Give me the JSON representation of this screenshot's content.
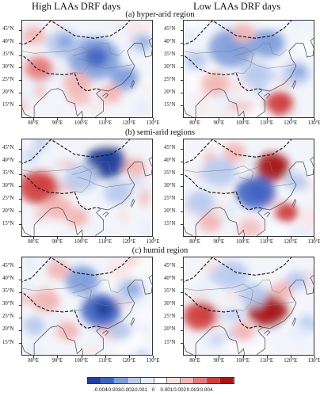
{
  "column_titles": [
    "High LAAs DRF days",
    "Low LAAs DRF days"
  ],
  "row_titles": [
    "(a) hyper-arid region",
    "(b) semi-arid regions",
    "(c) humid region"
  ],
  "lat_labels": [
    "45°N",
    "40°N",
    "35°N",
    "30°N",
    "25°N",
    "20°N",
    "15°N"
  ],
  "lon_labels": [
    "80°E",
    "90°E",
    "100°E",
    "110°E",
    "120°E",
    "130°E"
  ],
  "colorbar": {
    "ticks": [
      "-0.004",
      "-0.003",
      "-0.002",
      "-0.001",
      "0",
      "0.001",
      "0.002",
      "0.003",
      "0.004"
    ],
    "colors": [
      "#1f3f9a",
      "#3f63c4",
      "#7f9fdc",
      "#b9cbee",
      "#e4ebf8",
      "#ffffff",
      "#f9e0e0",
      "#f3b6b6",
      "#e67b7b",
      "#cf3e3e",
      "#a81414"
    ]
  },
  "panels": [
    {
      "name": "panel-a-high",
      "blobs": [
        [
          105,
          34,
          9,
          -0.7
        ],
        [
          92,
          40,
          6,
          -0.5
        ],
        [
          118,
          26,
          5,
          -0.6
        ],
        [
          82,
          30,
          5,
          0.5
        ],
        [
          112,
          20,
          4,
          0.4
        ],
        [
          125,
          40,
          4,
          -0.5
        ],
        [
          98,
          24,
          5,
          0.3
        ],
        [
          80,
          43,
          4,
          0.35
        ]
      ]
    },
    {
      "name": "panel-a-low",
      "blobs": [
        [
          95,
          38,
          8,
          -0.55
        ],
        [
          110,
          40,
          6,
          -0.6
        ],
        [
          115,
          16,
          5,
          0.75
        ],
        [
          105,
          28,
          5,
          -0.35
        ],
        [
          122,
          28,
          5,
          -0.5
        ],
        [
          88,
          24,
          5,
          0.3
        ],
        [
          80,
          33,
          4,
          -0.4
        ],
        [
          100,
          44,
          4,
          0.4
        ]
      ]
    },
    {
      "name": "panel-b-high",
      "blobs": [
        [
          110,
          40,
          7,
          -0.95
        ],
        [
          82,
          30,
          7,
          0.7
        ],
        [
          100,
          34,
          6,
          -0.35
        ],
        [
          115,
          28,
          5,
          -0.45
        ],
        [
          90,
          22,
          5,
          0.45
        ],
        [
          122,
          38,
          4,
          0.35
        ],
        [
          98,
          18,
          4,
          0.3
        ],
        [
          78,
          42,
          4,
          -0.3
        ]
      ]
    },
    {
      "name": "panel-b-low",
      "blobs": [
        [
          112,
          38,
          6,
          0.9
        ],
        [
          105,
          28,
          7,
          -0.75
        ],
        [
          118,
          20,
          4,
          0.75
        ],
        [
          90,
          36,
          6,
          -0.35
        ],
        [
          82,
          24,
          5,
          -0.4
        ],
        [
          122,
          32,
          4,
          -0.45
        ],
        [
          96,
          44,
          4,
          0.4
        ],
        [
          86,
          16,
          4,
          0.3
        ]
      ]
    },
    {
      "name": "panel-c-high",
      "blobs": [
        [
          108,
          28,
          7,
          -0.85
        ],
        [
          100,
          40,
          6,
          -0.55
        ],
        [
          85,
          32,
          5,
          0.4
        ],
        [
          90,
          44,
          4,
          0.45
        ],
        [
          120,
          36,
          5,
          -0.5
        ],
        [
          116,
          20,
          4,
          -0.4
        ],
        [
          80,
          22,
          4,
          -0.35
        ],
        [
          94,
          20,
          4,
          0.3
        ]
      ]
    },
    {
      "name": "panel-c-low",
      "blobs": [
        [
          110,
          28,
          7,
          0.95
        ],
        [
          82,
          26,
          6,
          0.7
        ],
        [
          95,
          42,
          6,
          -0.45
        ],
        [
          104,
          34,
          5,
          -0.4
        ],
        [
          122,
          40,
          4,
          -0.35
        ],
        [
          100,
          20,
          4,
          0.4
        ],
        [
          116,
          36,
          4,
          0.35
        ],
        [
          88,
          16,
          4,
          -0.3
        ]
      ]
    }
  ]
}
